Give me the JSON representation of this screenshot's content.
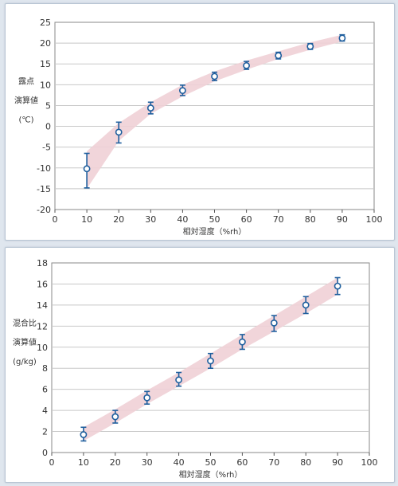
{
  "chart_data": [
    {
      "type": "scatter",
      "xlabel": "相対湿度（%rh）",
      "ylabel_lines": [
        "露点",
        "演算値",
        "(℃)"
      ],
      "xlim": [
        0,
        100
      ],
      "ylim": [
        -20,
        25
      ],
      "xticks": [
        0,
        10,
        20,
        30,
        40,
        50,
        60,
        70,
        80,
        90,
        100
      ],
      "yticks": [
        -20,
        -15,
        -10,
        -5,
        0,
        5,
        10,
        15,
        20,
        25
      ],
      "grid": true,
      "x": [
        10,
        20,
        30,
        40,
        50,
        60,
        70,
        80,
        90
      ],
      "y": [
        -10.2,
        -1.4,
        4.4,
        8.6,
        12.0,
        14.6,
        17.0,
        19.2,
        21.2
      ],
      "err_low": [
        -14.8,
        -4.0,
        3.0,
        7.4,
        11.0,
        13.7,
        16.2,
        18.5,
        20.5
      ],
      "err_high": [
        -6.5,
        1.0,
        5.8,
        9.9,
        13.0,
        15.6,
        17.8,
        19.9,
        22.0
      ],
      "band_low": [
        -15.0,
        -3.5,
        3.0,
        7.2,
        10.8,
        13.6,
        16.2,
        18.4,
        20.4
      ],
      "band_high": [
        -6.0,
        0.8,
        5.8,
        10.0,
        13.2,
        15.8,
        18.0,
        20.2,
        22.0
      ],
      "colors": {
        "marker": "#1f5f9e",
        "band": "#f0d0d6"
      }
    },
    {
      "type": "scatter",
      "xlabel": "相対湿度（%rh）",
      "ylabel_lines": [
        "混合比",
        "演算値",
        "(g/kg)"
      ],
      "xlim": [
        0,
        100
      ],
      "ylim": [
        0,
        18
      ],
      "xticks": [
        0,
        10,
        20,
        30,
        40,
        50,
        60,
        70,
        80,
        90,
        100
      ],
      "yticks": [
        0,
        2,
        4,
        6,
        8,
        10,
        12,
        14,
        16,
        18
      ],
      "grid": true,
      "x": [
        10,
        20,
        30,
        40,
        50,
        60,
        70,
        80,
        90
      ],
      "y": [
        1.7,
        3.4,
        5.2,
        6.9,
        8.7,
        10.5,
        12.3,
        14.0,
        15.8
      ],
      "err_low": [
        1.1,
        2.8,
        4.6,
        6.3,
        8.0,
        9.8,
        11.5,
        13.2,
        15.0
      ],
      "err_high": [
        2.4,
        4.0,
        5.8,
        7.6,
        9.4,
        11.2,
        13.0,
        14.8,
        16.6
      ],
      "band_low": [
        1.1,
        2.8,
        4.6,
        6.3,
        8.0,
        9.8,
        11.5,
        13.2,
        15.0
      ],
      "band_high": [
        2.4,
        4.1,
        5.9,
        7.6,
        9.4,
        11.2,
        13.0,
        14.8,
        16.6
      ],
      "colors": {
        "marker": "#1f5f9e",
        "band": "#f0d0d6"
      }
    }
  ]
}
